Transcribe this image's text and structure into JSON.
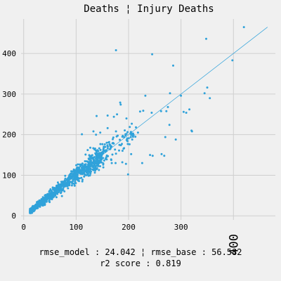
{
  "chart_data": {
    "type": "scatter",
    "title": "Deaths ¦ Injury Deaths",
    "xlabel": "",
    "ylabel": "",
    "xlim": [
      -5,
      480
    ],
    "ylim": [
      -10,
      485
    ],
    "xticks": [
      0,
      100,
      200,
      300,
      400
    ],
    "yticks": [
      0,
      100,
      200,
      300,
      400
    ],
    "xtick_labels": [
      "0",
      "100",
      "200",
      "300",
      "400"
    ],
    "ytick_labels": [
      "0",
      "100",
      "200",
      "300",
      "400"
    ],
    "grid": true,
    "color": "#30a2da",
    "trend_line": {
      "x": [
        15,
        465
      ],
      "y": [
        15,
        465
      ]
    },
    "outliers": {
      "x": [
        420,
        398,
        348,
        350,
        355,
        345,
        285,
        279,
        278,
        275,
        272,
        268,
        245,
        241,
        232,
        228,
        222,
        218,
        213,
        207,
        205,
        199,
        195,
        188,
        185,
        178,
        176,
        172,
        168,
        164,
        160,
        158,
        300,
        305,
        310,
        316,
        320,
        321,
        244,
        262,
        246,
        290,
        270,
        263,
        176,
        189,
        196,
        214,
        205,
        226,
        184,
        176,
        160,
        139,
        146,
        138,
        133,
        127,
        122,
        118,
        111
      ],
      "y": [
        465,
        383,
        436,
        316,
        290,
        302,
        370,
        302,
        224,
        268,
        258,
        148,
        398,
        150,
        296,
        259,
        257,
        205,
        195,
        188,
        199,
        102,
        128,
        132,
        274,
        250,
        408,
        244,
        130,
        176,
        216,
        160,
        296,
        256,
        254,
        262,
        210,
        208,
        254,
        258,
        148,
        188,
        194,
        152,
        153,
        197,
        240,
        218,
        152,
        130,
        279,
        208,
        247,
        246,
        205,
        200,
        208,
        168,
        162,
        151,
        201
      ]
    }
  },
  "metrics": {
    "line1": "rmse_model : 24.042 ¦ rmse_base : 56.582",
    "line2": "r2 score : 0.819"
  }
}
